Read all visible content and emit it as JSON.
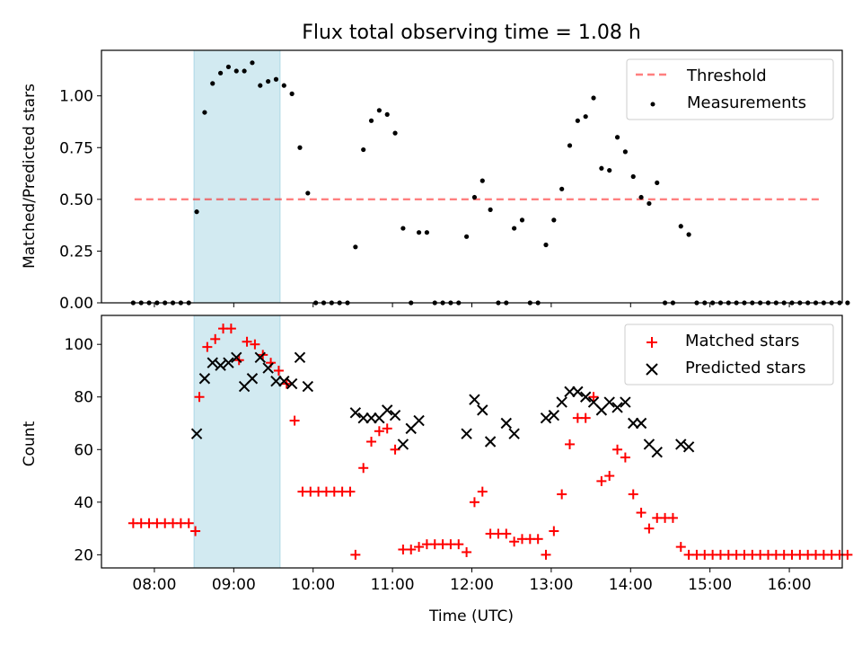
{
  "chart_data": [
    {
      "type": "scatter",
      "title": "Flux total observing time = 1.08 h",
      "xlabel": "",
      "ylabel": "Matched/Predicted stars",
      "xlim": [
        "07:20",
        "16:40"
      ],
      "ylim": [
        0,
        1.22
      ],
      "yticks": [
        "0.00",
        "0.25",
        "0.50",
        "0.75",
        "1.00"
      ],
      "shaded_region": {
        "start": "08:30",
        "end": "09:35",
        "color": "#add8e6"
      },
      "threshold": {
        "name": "Threshold",
        "value": 0.5,
        "x_start": "07:45",
        "x_end": "16:25",
        "color": "#ff0000"
      },
      "legend": {
        "position": "upper right",
        "entries": [
          "Threshold",
          "Measurements"
        ]
      },
      "series": [
        {
          "name": "Measurements",
          "color": "#000000",
          "points": [
            [
              "07:44",
              0
            ],
            [
              "07:50",
              0
            ],
            [
              "07:56",
              0
            ],
            [
              "08:02",
              0
            ],
            [
              "08:08",
              0
            ],
            [
              "08:14",
              0
            ],
            [
              "08:20",
              0
            ],
            [
              "08:26",
              0
            ],
            [
              "08:32",
              0.44
            ],
            [
              "08:38",
              0.92
            ],
            [
              "08:44",
              1.06
            ],
            [
              "08:50",
              1.11
            ],
            [
              "08:56",
              1.14
            ],
            [
              "09:02",
              1.12
            ],
            [
              "09:08",
              1.12
            ],
            [
              "09:14",
              1.16
            ],
            [
              "09:20",
              1.05
            ],
            [
              "09:26",
              1.07
            ],
            [
              "09:32",
              1.08
            ],
            [
              "09:38",
              1.05
            ],
            [
              "09:44",
              1.01
            ],
            [
              "09:50",
              0.75
            ],
            [
              "09:56",
              0.53
            ],
            [
              "10:02",
              0
            ],
            [
              "10:08",
              0
            ],
            [
              "10:14",
              0
            ],
            [
              "10:20",
              0
            ],
            [
              "10:26",
              0
            ],
            [
              "10:32",
              0.27
            ],
            [
              "10:38",
              0.74
            ],
            [
              "10:44",
              0.88
            ],
            [
              "10:50",
              0.93
            ],
            [
              "10:56",
              0.91
            ],
            [
              "11:02",
              0.82
            ],
            [
              "11:08",
              0.36
            ],
            [
              "11:14",
              0
            ],
            [
              "11:20",
              0.34
            ],
            [
              "11:26",
              0.34
            ],
            [
              "11:32",
              0
            ],
            [
              "11:38",
              0
            ],
            [
              "11:44",
              0
            ],
            [
              "11:50",
              0
            ],
            [
              "11:56",
              0.32
            ],
            [
              "12:02",
              0.51
            ],
            [
              "12:08",
              0.59
            ],
            [
              "12:14",
              0.45
            ],
            [
              "12:20",
              0
            ],
            [
              "12:26",
              0
            ],
            [
              "12:32",
              0.36
            ],
            [
              "12:38",
              0.4
            ],
            [
              "12:44",
              0
            ],
            [
              "12:50",
              0
            ],
            [
              "12:56",
              0.28
            ],
            [
              "13:02",
              0.4
            ],
            [
              "13:08",
              0.55
            ],
            [
              "13:14",
              0.76
            ],
            [
              "13:20",
              0.88
            ],
            [
              "13:26",
              0.9
            ],
            [
              "13:32",
              0.99
            ],
            [
              "13:38",
              0.65
            ],
            [
              "13:44",
              0.64
            ],
            [
              "13:50",
              0.8
            ],
            [
              "13:56",
              0.73
            ],
            [
              "14:02",
              0.61
            ],
            [
              "14:08",
              0.51
            ],
            [
              "14:14",
              0.48
            ],
            [
              "14:20",
              0.58
            ],
            [
              "14:26",
              0
            ],
            [
              "14:32",
              0
            ],
            [
              "14:38",
              0.37
            ],
            [
              "14:44",
              0.33
            ],
            [
              "14:50",
              0
            ],
            [
              "14:56",
              0
            ],
            [
              "15:02",
              0
            ],
            [
              "15:08",
              0
            ],
            [
              "15:14",
              0
            ],
            [
              "15:20",
              0
            ],
            [
              "15:26",
              0
            ],
            [
              "15:32",
              0
            ],
            [
              "15:38",
              0
            ],
            [
              "15:44",
              0
            ],
            [
              "15:50",
              0
            ],
            [
              "15:56",
              0
            ],
            [
              "16:02",
              0
            ],
            [
              "16:08",
              0
            ],
            [
              "16:14",
              0
            ],
            [
              "16:20",
              0
            ],
            [
              "16:26",
              0
            ],
            [
              "16:32",
              0
            ],
            [
              "16:38",
              0
            ],
            [
              "16:44",
              0
            ]
          ]
        }
      ]
    },
    {
      "type": "scatter",
      "title": "",
      "xlabel": "Time (UTC)",
      "ylabel": "Count",
      "xlim": [
        "07:20",
        "16:40"
      ],
      "ylim": [
        15,
        111
      ],
      "yticks": [
        "20",
        "40",
        "60",
        "80",
        "100"
      ],
      "xticks": [
        "08:00",
        "09:00",
        "10:00",
        "11:00",
        "12:00",
        "13:00",
        "14:00",
        "15:00",
        "16:00"
      ],
      "shaded_region": {
        "start": "08:30",
        "end": "09:35",
        "color": "#add8e6"
      },
      "legend": {
        "position": "upper right",
        "entries": [
          "Matched stars",
          "Predicted stars"
        ]
      },
      "series": [
        {
          "name": "Matched stars",
          "color": "#ff0000",
          "marker": "+",
          "points": [
            [
              "07:44",
              32
            ],
            [
              "07:50",
              32
            ],
            [
              "07:56",
              32
            ],
            [
              "08:02",
              32
            ],
            [
              "08:08",
              32
            ],
            [
              "08:14",
              32
            ],
            [
              "08:20",
              32
            ],
            [
              "08:26",
              32
            ],
            [
              "08:31",
              29
            ],
            [
              "08:34",
              80
            ],
            [
              "08:40",
              99
            ],
            [
              "08:46",
              102
            ],
            [
              "08:52",
              106
            ],
            [
              "08:58",
              106
            ],
            [
              "09:04",
              94
            ],
            [
              "09:10",
              101
            ],
            [
              "09:16",
              100
            ],
            [
              "09:22",
              96
            ],
            [
              "09:28",
              93
            ],
            [
              "09:34",
              90
            ],
            [
              "09:40",
              85
            ],
            [
              "09:46",
              71
            ],
            [
              "09:52",
              44
            ],
            [
              "09:58",
              44
            ],
            [
              "10:04",
              44
            ],
            [
              "10:10",
              44
            ],
            [
              "10:16",
              44
            ],
            [
              "10:22",
              44
            ],
            [
              "10:28",
              44
            ],
            [
              "10:32",
              20
            ],
            [
              "10:38",
              53
            ],
            [
              "10:44",
              63
            ],
            [
              "10:50",
              67
            ],
            [
              "10:56",
              68
            ],
            [
              "11:02",
              60
            ],
            [
              "11:08",
              22
            ],
            [
              "11:14",
              22
            ],
            [
              "11:20",
              23
            ],
            [
              "11:26",
              24
            ],
            [
              "11:32",
              24
            ],
            [
              "11:38",
              24
            ],
            [
              "11:44",
              24
            ],
            [
              "11:50",
              24
            ],
            [
              "11:56",
              21
            ],
            [
              "12:02",
              40
            ],
            [
              "12:08",
              44
            ],
            [
              "12:14",
              28
            ],
            [
              "12:20",
              28
            ],
            [
              "12:26",
              28
            ],
            [
              "12:32",
              25
            ],
            [
              "12:38",
              26
            ],
            [
              "12:44",
              26
            ],
            [
              "12:50",
              26
            ],
            [
              "12:56",
              20
            ],
            [
              "13:02",
              29
            ],
            [
              "13:08",
              43
            ],
            [
              "13:14",
              62
            ],
            [
              "13:20",
              72
            ],
            [
              "13:26",
              72
            ],
            [
              "13:32",
              80
            ],
            [
              "13:38",
              48
            ],
            [
              "13:44",
              50
            ],
            [
              "13:50",
              60
            ],
            [
              "13:56",
              57
            ],
            [
              "14:02",
              43
            ],
            [
              "14:08",
              36
            ],
            [
              "14:14",
              30
            ],
            [
              "14:20",
              34
            ],
            [
              "14:26",
              34
            ],
            [
              "14:32",
              34
            ],
            [
              "14:38",
              23
            ],
            [
              "14:44",
              20
            ],
            [
              "14:50",
              20
            ],
            [
              "14:56",
              20
            ],
            [
              "15:02",
              20
            ],
            [
              "15:08",
              20
            ],
            [
              "15:14",
              20
            ],
            [
              "15:20",
              20
            ],
            [
              "15:26",
              20
            ],
            [
              "15:32",
              20
            ],
            [
              "15:38",
              20
            ],
            [
              "15:44",
              20
            ],
            [
              "15:50",
              20
            ],
            [
              "15:56",
              20
            ],
            [
              "16:02",
              20
            ],
            [
              "16:08",
              20
            ],
            [
              "16:14",
              20
            ],
            [
              "16:20",
              20
            ],
            [
              "16:26",
              20
            ],
            [
              "16:32",
              20
            ],
            [
              "16:38",
              20
            ],
            [
              "16:44",
              20
            ]
          ]
        },
        {
          "name": "Predicted stars",
          "color": "#000000",
          "marker": "x",
          "points": [
            [
              "08:32",
              66
            ],
            [
              "08:38",
              87
            ],
            [
              "08:44",
              93
            ],
            [
              "08:50",
              92
            ],
            [
              "08:56",
              93
            ],
            [
              "09:02",
              95
            ],
            [
              "09:08",
              84
            ],
            [
              "09:14",
              87
            ],
            [
              "09:20",
              95
            ],
            [
              "09:26",
              91
            ],
            [
              "09:32",
              86
            ],
            [
              "09:38",
              86
            ],
            [
              "09:44",
              85
            ],
            [
              "09:50",
              95
            ],
            [
              "09:56",
              84
            ],
            [
              "10:32",
              74
            ],
            [
              "10:38",
              72
            ],
            [
              "10:44",
              72
            ],
            [
              "10:50",
              72
            ],
            [
              "10:56",
              75
            ],
            [
              "11:02",
              73
            ],
            [
              "11:08",
              62
            ],
            [
              "11:14",
              68
            ],
            [
              "11:20",
              71
            ],
            [
              "11:56",
              66
            ],
            [
              "12:02",
              79
            ],
            [
              "12:08",
              75
            ],
            [
              "12:14",
              63
            ],
            [
              "12:26",
              70
            ],
            [
              "12:32",
              66
            ],
            [
              "12:56",
              72
            ],
            [
              "13:02",
              73
            ],
            [
              "13:08",
              78
            ],
            [
              "13:14",
              82
            ],
            [
              "13:20",
              82
            ],
            [
              "13:26",
              80
            ],
            [
              "13:32",
              78
            ],
            [
              "13:38",
              75
            ],
            [
              "13:44",
              78
            ],
            [
              "13:50",
              76
            ],
            [
              "13:56",
              78
            ],
            [
              "14:02",
              70
            ],
            [
              "14:08",
              70
            ],
            [
              "14:14",
              62
            ],
            [
              "14:20",
              59
            ],
            [
              "14:38",
              62
            ],
            [
              "14:44",
              61
            ]
          ]
        }
      ]
    }
  ]
}
